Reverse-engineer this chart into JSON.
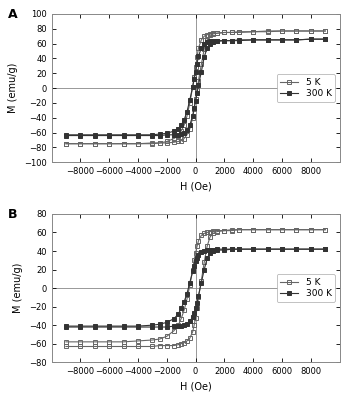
{
  "panel_A": {
    "label": "A",
    "ylim": [
      -100,
      100
    ],
    "yticks": [
      -100,
      -80,
      -60,
      -40,
      -20,
      0,
      20,
      40,
      60,
      80,
      100
    ],
    "ylabel": "M (emu/g)",
    "xlabel": "H (Oe)",
    "xlim": [
      -10000,
      10000
    ],
    "xticks": [
      -8000,
      -6000,
      -4000,
      -2000,
      0,
      2000,
      4000,
      6000,
      8000
    ],
    "series": [
      {
        "label": "5 K",
        "marker": "s",
        "fillstyle": "none",
        "color": "#666666",
        "linewidth": 0.8,
        "markersize": 3.0,
        "H_upper": [
          -9000,
          -8000,
          -7000,
          -6000,
          -5000,
          -4000,
          -3000,
          -2500,
          -2000,
          -1500,
          -1200,
          -1000,
          -800,
          -600,
          -400,
          -200,
          -100,
          0,
          100,
          200,
          400,
          600,
          800,
          1000,
          1200,
          1500,
          2000,
          2500,
          3000,
          4000,
          5000,
          6000,
          7000,
          8000,
          9000
        ],
        "M_upper": [
          -75,
          -75,
          -75,
          -75,
          -75,
          -75,
          -74,
          -74,
          -72,
          -68,
          -64,
          -58,
          -50,
          -38,
          -20,
          2,
          15,
          28,
          42,
          54,
          65,
          70,
          72,
          73,
          74,
          74,
          75,
          75,
          75,
          76,
          76,
          77,
          77,
          77,
          77
        ],
        "H_lower": [
          9000,
          8000,
          7000,
          6000,
          5000,
          4000,
          3000,
          2500,
          2000,
          1500,
          1200,
          1000,
          800,
          600,
          400,
          200,
          100,
          0,
          -100,
          -200,
          -400,
          -600,
          -800,
          -1000,
          -1200,
          -1500,
          -2000,
          -2500,
          -3000,
          -4000,
          -5000,
          -6000,
          -7000,
          -8000,
          -9000
        ],
        "M_lower": [
          77,
          77,
          77,
          77,
          77,
          76,
          76,
          75,
          75,
          74,
          73,
          71,
          65,
          53,
          32,
          10,
          -3,
          -15,
          -28,
          -40,
          -55,
          -63,
          -68,
          -71,
          -72,
          -73,
          -74,
          -74,
          -75,
          -75,
          -75,
          -75,
          -75,
          -75,
          -75
        ]
      },
      {
        "label": "300 K",
        "marker": "s",
        "fillstyle": "full",
        "color": "#333333",
        "linewidth": 0.8,
        "markersize": 3.0,
        "H_upper": [
          -9000,
          -8000,
          -7000,
          -6000,
          -5000,
          -4000,
          -3000,
          -2500,
          -2000,
          -1500,
          -1200,
          -1000,
          -800,
          -600,
          -400,
          -200,
          -100,
          0,
          100,
          200,
          400,
          600,
          800,
          1000,
          1200,
          1500,
          2000,
          2500,
          3000,
          4000,
          5000,
          6000,
          7000,
          8000,
          9000
        ],
        "M_upper": [
          -63,
          -63,
          -63,
          -63,
          -63,
          -63,
          -63,
          -62,
          -61,
          -58,
          -55,
          -50,
          -43,
          -32,
          -16,
          2,
          12,
          22,
          33,
          43,
          54,
          59,
          62,
          63,
          63,
          64,
          64,
          64,
          64,
          65,
          65,
          65,
          65,
          66,
          66
        ],
        "H_lower": [
          9000,
          8000,
          7000,
          6000,
          5000,
          4000,
          3000,
          2500,
          2000,
          1500,
          1200,
          1000,
          800,
          600,
          400,
          200,
          100,
          0,
          -100,
          -200,
          -400,
          -600,
          -800,
          -1000,
          -1200,
          -1500,
          -2000,
          -2500,
          -3000,
          -4000,
          -5000,
          -6000,
          -7000,
          -8000,
          -9000
        ],
        "M_lower": [
          66,
          66,
          65,
          65,
          65,
          65,
          65,
          64,
          64,
          63,
          62,
          60,
          54,
          42,
          22,
          4,
          -7,
          -17,
          -27,
          -37,
          -50,
          -56,
          -60,
          -62,
          -63,
          -63,
          -63,
          -64,
          -64,
          -64,
          -64,
          -64,
          -64,
          -64,
          -64
        ]
      }
    ]
  },
  "panel_B": {
    "label": "B",
    "ylim": [
      -80,
      80
    ],
    "yticks": [
      -80,
      -60,
      -40,
      -20,
      0,
      20,
      40,
      60,
      80
    ],
    "ylabel": "M (emu/g)",
    "xlabel": "H (Oe)",
    "xlim": [
      -10000,
      10000
    ],
    "xticks": [
      -8000,
      -6000,
      -4000,
      -2000,
      0,
      2000,
      4000,
      6000,
      8000
    ],
    "series": [
      {
        "label": "5 K",
        "marker": "s",
        "fillstyle": "none",
        "color": "#666666",
        "linewidth": 0.8,
        "markersize": 3.0,
        "H_upper": [
          -9000,
          -8000,
          -7000,
          -6000,
          -5000,
          -4000,
          -3000,
          -2500,
          -2000,
          -1500,
          -1200,
          -1000,
          -800,
          -600,
          -400,
          -200,
          -100,
          0,
          100,
          200,
          400,
          600,
          800,
          1000,
          1200,
          1500,
          2000,
          2500,
          3000,
          4000,
          5000,
          6000,
          7000,
          8000,
          9000
        ],
        "M_upper": [
          -58,
          -58,
          -58,
          -58,
          -58,
          -57,
          -56,
          -55,
          -52,
          -46,
          -40,
          -33,
          -24,
          -12,
          3,
          20,
          30,
          38,
          45,
          51,
          57,
          59,
          60,
          61,
          62,
          62,
          62,
          63,
          63,
          63,
          63,
          63,
          63,
          63,
          63
        ],
        "H_lower": [
          9000,
          8000,
          7000,
          6000,
          5000,
          4000,
          3000,
          2500,
          2000,
          1500,
          1200,
          1000,
          800,
          600,
          400,
          200,
          100,
          0,
          -100,
          -200,
          -400,
          -600,
          -800,
          -1000,
          -1200,
          -1500,
          -2000,
          -2500,
          -3000,
          -4000,
          -5000,
          -6000,
          -7000,
          -8000,
          -9000
        ],
        "M_lower": [
          63,
          63,
          63,
          63,
          63,
          63,
          63,
          62,
          62,
          61,
          59,
          55,
          45,
          28,
          8,
          -10,
          -22,
          -32,
          -40,
          -47,
          -54,
          -57,
          -59,
          -60,
          -61,
          -62,
          -62,
          -62,
          -63,
          -63,
          -63,
          -63,
          -63,
          -63,
          -63
        ]
      },
      {
        "label": "300 K",
        "marker": "s",
        "fillstyle": "full",
        "color": "#333333",
        "linewidth": 0.8,
        "markersize": 3.0,
        "H_upper": [
          -9000,
          -8000,
          -7000,
          -6000,
          -5000,
          -4000,
          -3000,
          -2500,
          -2000,
          -1500,
          -1200,
          -1000,
          -800,
          -600,
          -400,
          -200,
          -100,
          0,
          100,
          200,
          400,
          600,
          800,
          1000,
          1200,
          1500,
          2000,
          2500,
          3000,
          4000,
          5000,
          6000,
          7000,
          8000,
          9000
        ],
        "M_upper": [
          -41,
          -41,
          -41,
          -41,
          -41,
          -41,
          -40,
          -39,
          -37,
          -33,
          -28,
          -22,
          -15,
          -6,
          6,
          18,
          24,
          29,
          33,
          36,
          39,
          40,
          41,
          41,
          41,
          42,
          42,
          42,
          42,
          42,
          42,
          42,
          42,
          42,
          42
        ],
        "H_lower": [
          9000,
          8000,
          7000,
          6000,
          5000,
          4000,
          3000,
          2500,
          2000,
          1500,
          1200,
          1000,
          800,
          600,
          400,
          200,
          100,
          0,
          -100,
          -200,
          -400,
          -600,
          -800,
          -1000,
          -1200,
          -1500,
          -2000,
          -2500,
          -3000,
          -4000,
          -5000,
          -6000,
          -7000,
          -8000,
          -9000
        ],
        "M_lower": [
          42,
          42,
          42,
          42,
          42,
          42,
          42,
          42,
          41,
          41,
          40,
          38,
          32,
          20,
          6,
          -8,
          -16,
          -22,
          -27,
          -31,
          -36,
          -39,
          -40,
          -41,
          -41,
          -41,
          -42,
          -42,
          -42,
          -42,
          -42,
          -42,
          -42,
          -42,
          -42
        ]
      }
    ]
  },
  "fig_background": "#ffffff",
  "ax_background": "#ffffff",
  "border_color": "#888888"
}
